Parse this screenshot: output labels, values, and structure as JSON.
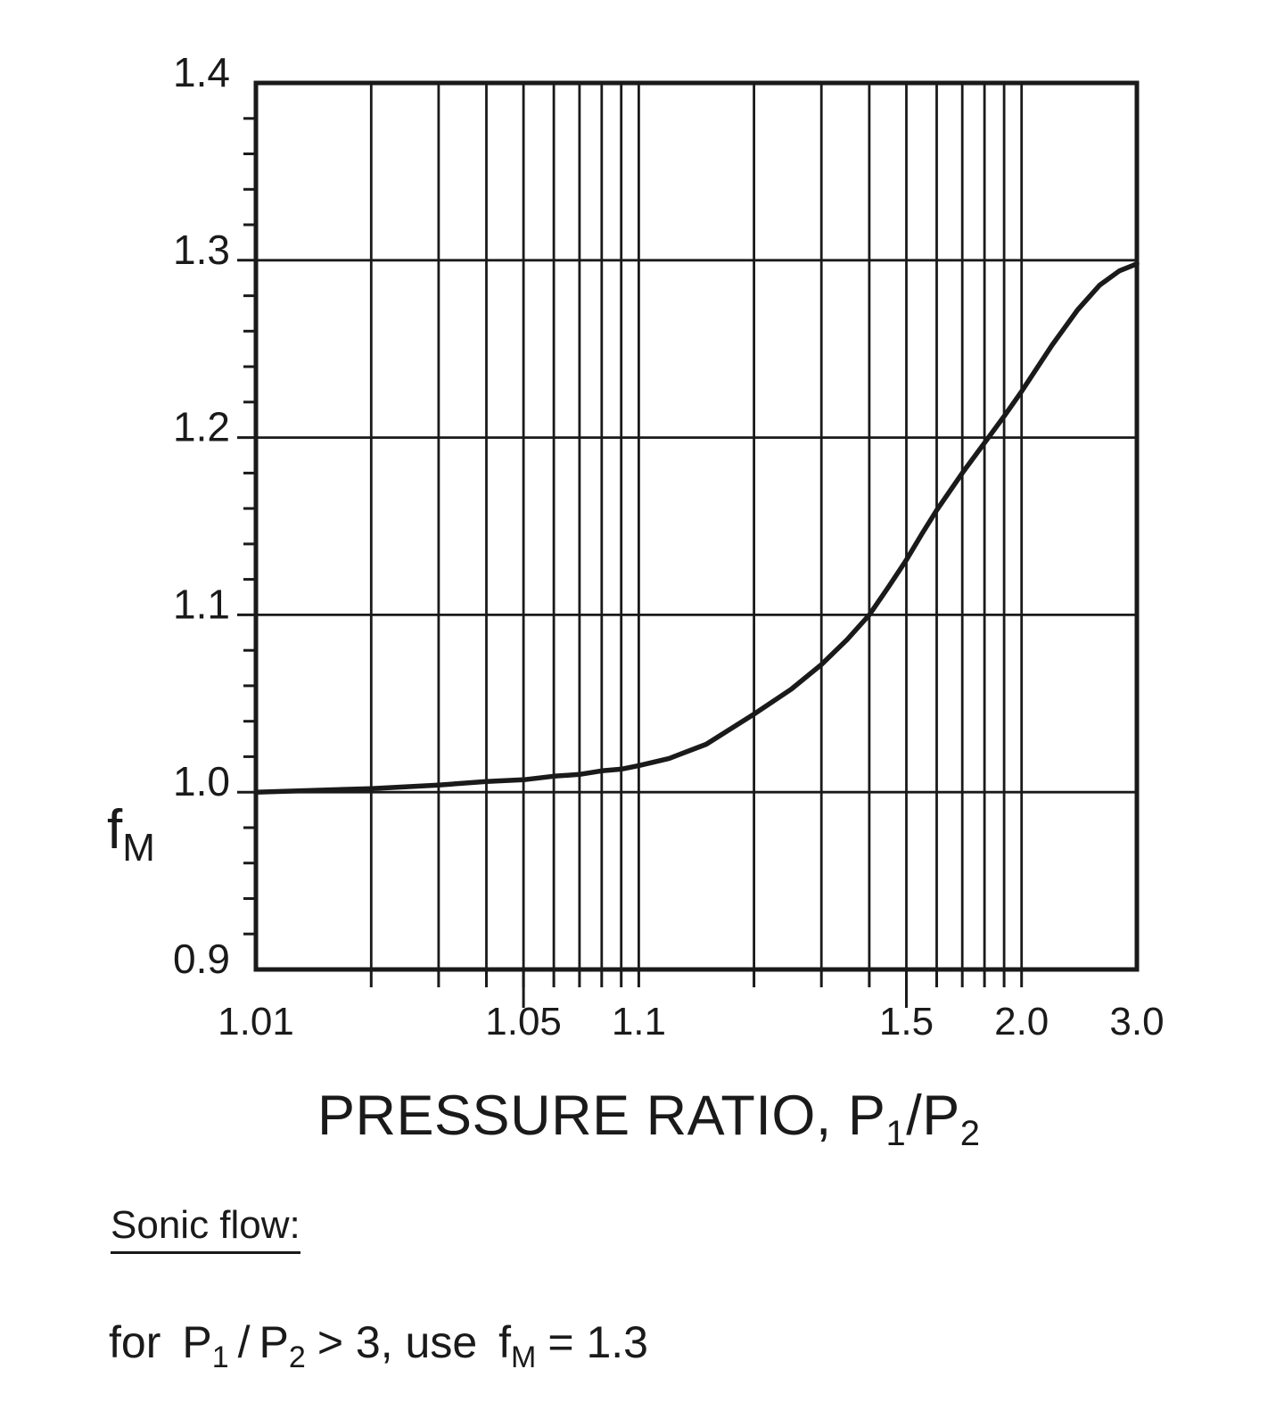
{
  "page": {
    "background_color": "#ffffff",
    "ink_color": "#1a1a1a"
  },
  "chart_data": {
    "type": "line",
    "title": "",
    "xlabel": "PRESSURE RATIO, P1/P2",
    "ylabel": "fM",
    "x_scale": "logarithmic in (P1/P2 - 1), spanning 0.01 to 2.0",
    "xlim": [
      1.01,
      3.0
    ],
    "ylim": [
      0.9,
      1.4
    ],
    "grid": true,
    "legend": "none",
    "x_tick_labels": [
      {
        "value": 1.01,
        "label": "1.01"
      },
      {
        "value": 1.05,
        "label": "1.05"
      },
      {
        "value": 1.1,
        "label": "1.1"
      },
      {
        "value": 1.5,
        "label": "1.5"
      },
      {
        "value": 2.0,
        "label": "2.0"
      },
      {
        "value": 3.0,
        "label": "3.0"
      }
    ],
    "x_gridlines": [
      1.02,
      1.03,
      1.04,
      1.05,
      1.06,
      1.07,
      1.08,
      1.09,
      1.1,
      1.2,
      1.3,
      1.4,
      1.5,
      1.6,
      1.7,
      1.8,
      1.9,
      2.0
    ],
    "x_label_droplines": [
      1.05,
      1.5
    ],
    "y_tick_labels": [
      {
        "value": 0.9,
        "label": "0.9"
      },
      {
        "value": 1.0,
        "label": "1.0"
      },
      {
        "value": 1.1,
        "label": "1.1"
      },
      {
        "value": 1.2,
        "label": "1.2"
      },
      {
        "value": 1.3,
        "label": "1.3"
      },
      {
        "value": 1.4,
        "label": "1.4"
      }
    ],
    "y_gridlines": [
      1.0,
      1.1,
      1.2,
      1.3
    ],
    "y_minor_tick_step": 0.02,
    "line_color": "#1a1a1a",
    "series": [
      {
        "name": "fM",
        "points": [
          [
            1.01,
            1.0
          ],
          [
            1.02,
            1.002
          ],
          [
            1.03,
            1.004
          ],
          [
            1.04,
            1.006
          ],
          [
            1.05,
            1.007
          ],
          [
            1.06,
            1.009
          ],
          [
            1.07,
            1.01
          ],
          [
            1.08,
            1.012
          ],
          [
            1.09,
            1.013
          ],
          [
            1.1,
            1.015
          ],
          [
            1.12,
            1.019
          ],
          [
            1.15,
            1.027
          ],
          [
            1.2,
            1.044
          ],
          [
            1.25,
            1.058
          ],
          [
            1.3,
            1.072
          ],
          [
            1.35,
            1.086
          ],
          [
            1.4,
            1.1
          ],
          [
            1.45,
            1.116
          ],
          [
            1.5,
            1.131
          ],
          [
            1.55,
            1.146
          ],
          [
            1.6,
            1.159
          ],
          [
            1.7,
            1.18
          ],
          [
            1.8,
            1.197
          ],
          [
            1.9,
            1.212
          ],
          [
            2.0,
            1.226
          ],
          [
            2.2,
            1.252
          ],
          [
            2.4,
            1.272
          ],
          [
            2.6,
            1.286
          ],
          [
            2.8,
            1.294
          ],
          [
            3.0,
            1.298
          ]
        ]
      }
    ]
  },
  "labels": {
    "y_axis": {
      "base": "f",
      "sub": "M"
    },
    "x_axis": {
      "prefix": "PRESSURE RATIO, P",
      "sub1": "1",
      "mid": "/P",
      "sub2": "2"
    }
  },
  "annotations": {
    "sonic_heading": "Sonic flow:",
    "formula": {
      "lead": "for",
      "p1": "P",
      "p1_sub": "1",
      "slash": "/",
      "p2": "P",
      "p2_sub": "2",
      "middle": "> 3, use",
      "f": "f",
      "f_sub": "M",
      "tail": "= 1.3"
    }
  }
}
